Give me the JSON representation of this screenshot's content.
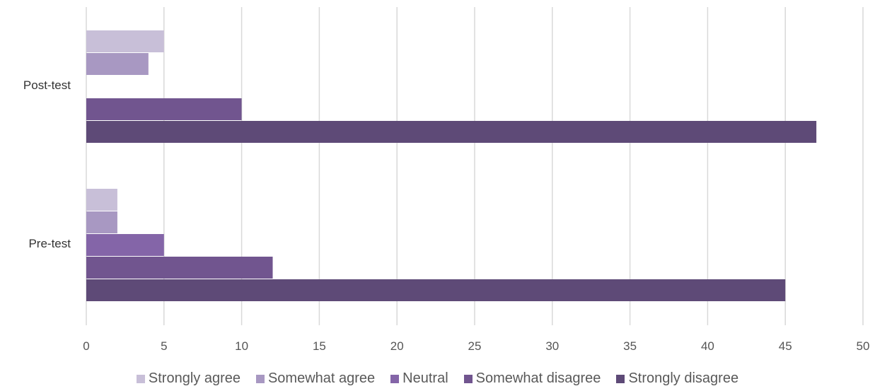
{
  "chart_data": {
    "type": "bar",
    "orientation": "horizontal",
    "categories": [
      "Post-test",
      "Pre-test"
    ],
    "series": [
      {
        "name": "Strongly agree",
        "values": [
          5,
          2
        ],
        "color": "#c8bfd8"
      },
      {
        "name": "Somewhat agree",
        "values": [
          4,
          2
        ],
        "color": "#a898c2"
      },
      {
        "name": "Neutral",
        "values": [
          0,
          5
        ],
        "color": "#8465a8"
      },
      {
        "name": "Somewhat disagree",
        "values": [
          10,
          12
        ],
        "color": "#71558f"
      },
      {
        "name": "Strongly disagree",
        "values": [
          47,
          45
        ],
        "color": "#5e4a77"
      }
    ],
    "xlim": [
      0,
      50
    ],
    "xticks": [
      "0",
      "5",
      "10",
      "15",
      "20",
      "25",
      "30",
      "35",
      "40",
      "45",
      "50"
    ],
    "grid": true,
    "legend_position": "bottom",
    "title": "",
    "xlabel": "",
    "ylabel": ""
  }
}
